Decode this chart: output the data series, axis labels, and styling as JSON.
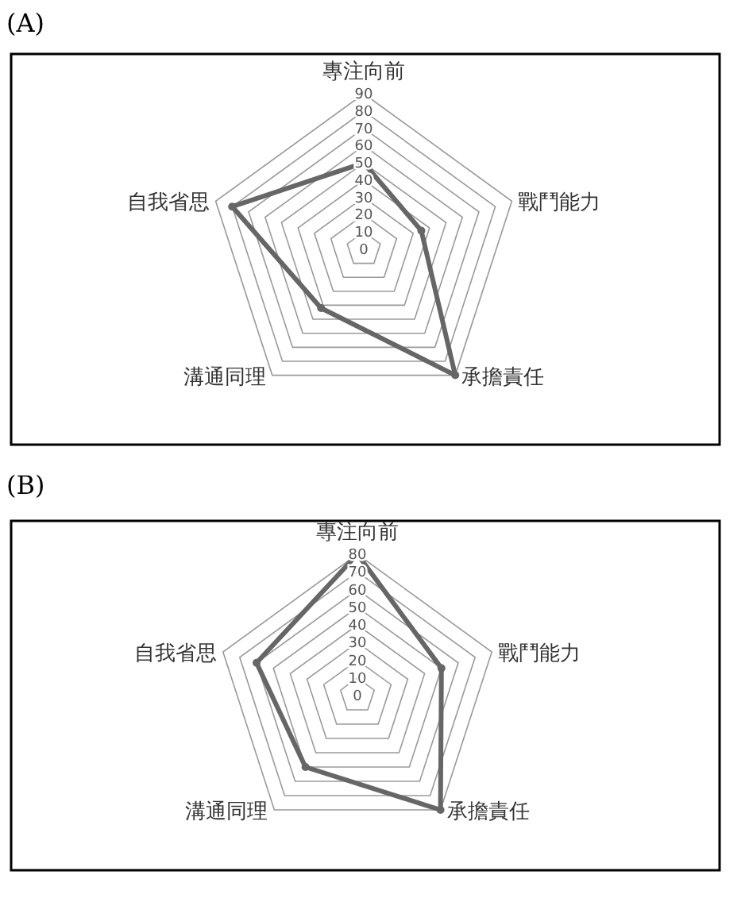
{
  "chart_data": [
    {
      "type": "radar",
      "title": "(A)",
      "categories": [
        "專注向前",
        "戰鬥能力",
        "承擔責任",
        "溝通同理",
        "自我省思"
      ],
      "series": [
        {
          "color": "#666666",
          "values": [
            50,
            35,
            90,
            42,
            80
          ]
        }
      ],
      "ylim": [
        0,
        90
      ],
      "yticks": [
        0,
        10,
        20,
        30,
        40,
        50,
        60,
        70,
        80,
        90
      ],
      "grid": true,
      "marker": "circle"
    },
    {
      "type": "radar",
      "title": "(B)",
      "categories": [
        "專注向前",
        "戰鬥能力",
        "承擔責任",
        "溝通同理",
        "自我省思"
      ],
      "series": [
        {
          "color": "#666666",
          "values": [
            80,
            50,
            80,
            50,
            60
          ]
        }
      ],
      "ylim": [
        0,
        80
      ],
      "yticks": [
        0,
        10,
        20,
        30,
        40,
        50,
        60,
        70,
        80
      ],
      "grid": true,
      "marker": "circle"
    }
  ]
}
